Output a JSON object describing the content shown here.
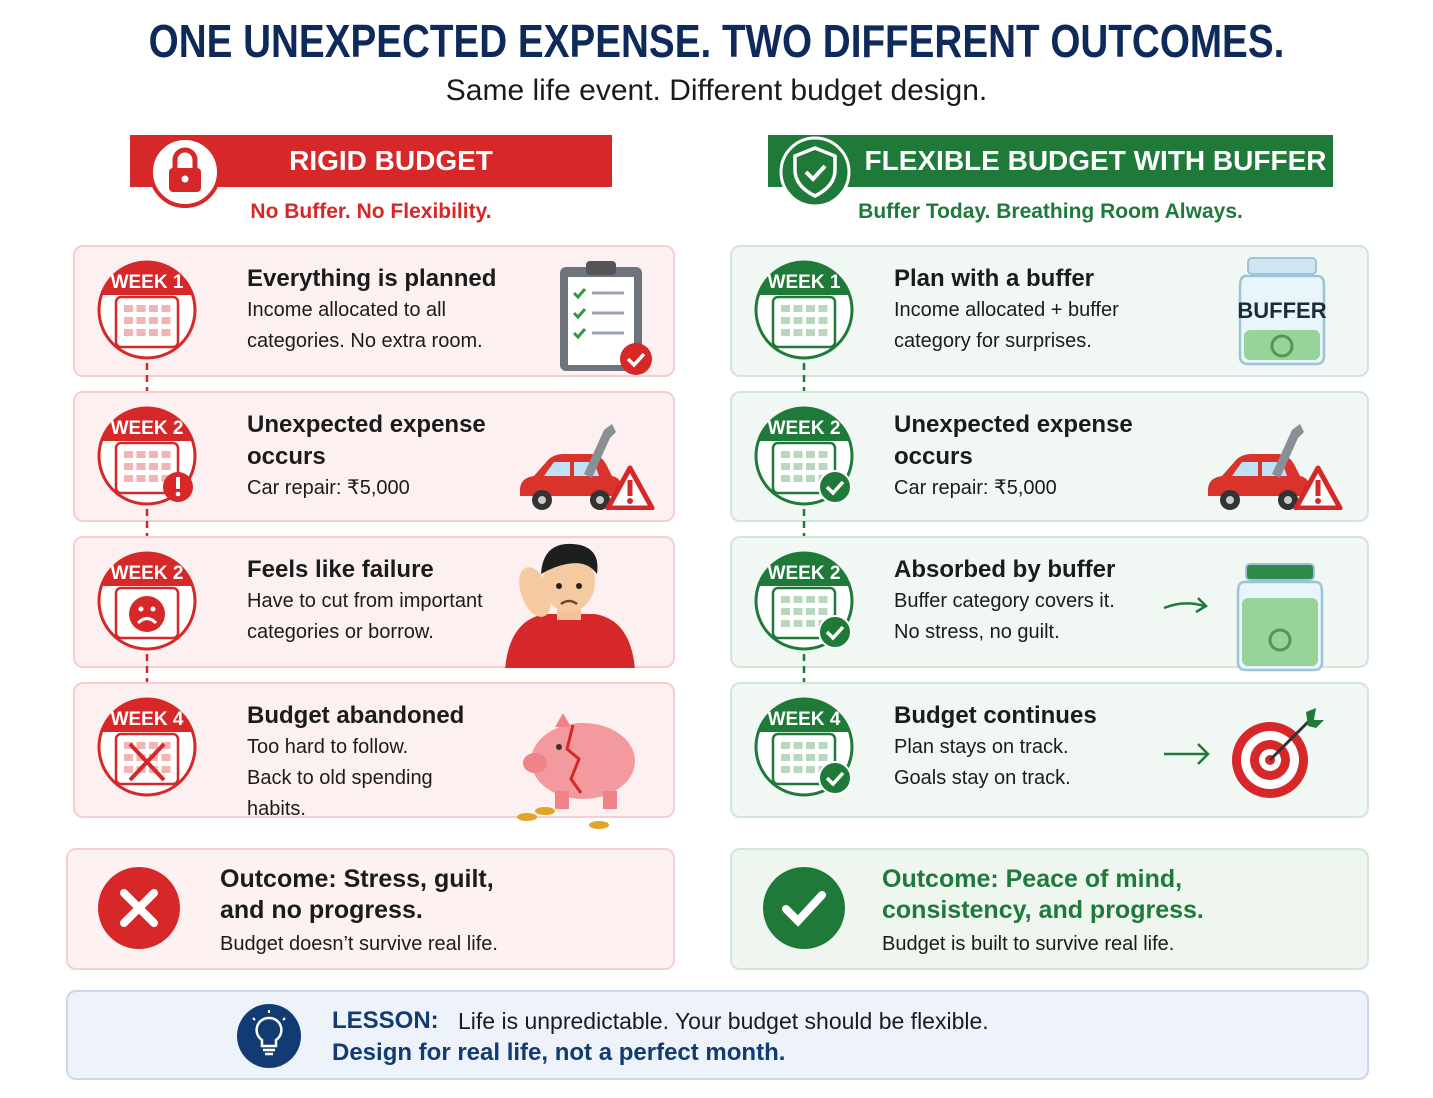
{
  "header": {
    "title": "ONE UNEXPECTED EXPENSE. TWO DIFFERENT OUTCOMES.",
    "subtitle": "Same life event. Different budget design."
  },
  "columns": [
    {
      "title": "RIGID BUDGET",
      "tagline": "No Buffer. No Flexibility.",
      "steps": [
        {
          "week": "WEEK 1",
          "title": "Everything is planned",
          "text": [
            "Income allocated to all",
            "categories. No extra room."
          ]
        },
        {
          "week": "WEEK 2",
          "title": "Unexpected expense occurs",
          "text": [
            "Car repair: ₹5,000"
          ]
        },
        {
          "week": "WEEK 2",
          "title": "Feels like failure",
          "text": [
            "Have to cut from important",
            "categories or borrow."
          ]
        },
        {
          "week": "WEEK 4",
          "title": "Budget abandoned",
          "text": [
            "Too hard to follow.",
            "Back to old spending",
            "habits."
          ]
        }
      ],
      "outcome": {
        "title": [
          "Outcome: Stress, guilt,",
          "and no progress."
        ],
        "text": "Budget doesn’t survive real life."
      }
    },
    {
      "title": "FLEXIBLE BUDGET WITH BUFFER",
      "tagline": "Buffer Today. Breathing Room Always.",
      "steps": [
        {
          "week": "WEEK 1",
          "title": "Plan with a buffer",
          "text": [
            "Income allocated + buffer",
            "category for surprises."
          ]
        },
        {
          "week": "WEEK 2",
          "title": "Unexpected expense occurs",
          "text": [
            "Car repair: ₹5,000"
          ]
        },
        {
          "week": "WEEK 2",
          "title": "Absorbed by buffer",
          "text": [
            "Buffer category covers it.",
            "No stress, no guilt."
          ]
        },
        {
          "week": "WEEK 4",
          "title": "Budget continues",
          "text": [
            "Plan stays on track.",
            "Goals stay on track."
          ]
        }
      ],
      "outcome": {
        "title": [
          "Outcome: Peace of mind,",
          "consistency, and progress."
        ],
        "text": "Budget is built to survive real life."
      }
    }
  ],
  "jar_label": "BUFFER",
  "lesson": {
    "label": "LESSON:",
    "text": "Life is unpredictable. Your budget should be flexible.",
    "emphasis": "Design for real life, not a perfect month."
  }
}
